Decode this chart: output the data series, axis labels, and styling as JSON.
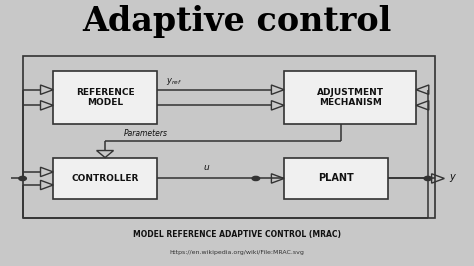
{
  "title": "Adaptive control",
  "subtitle": "MODEL REFERENCE ADAPTIVE CONTROL (MRAC)",
  "url": "https://en.wikipedia.org/wiki/File:MRAC.svg",
  "bg_color": "#c8c8c8",
  "bg_color_top": "#e8e8e8",
  "box_color": "#f0f0f0",
  "box_edge_color": "#333333",
  "line_color": "#333333",
  "title_color": "#000000",
  "rm": [
    0.11,
    0.54,
    0.22,
    0.2
  ],
  "am": [
    0.6,
    0.54,
    0.28,
    0.2
  ],
  "ct": [
    0.11,
    0.25,
    0.22,
    0.16
  ],
  "pl": [
    0.6,
    0.25,
    0.22,
    0.16
  ],
  "outer": [
    0.045,
    0.18,
    0.875,
    0.62
  ],
  "tri_size": 0.018,
  "dot_r": 0.008
}
